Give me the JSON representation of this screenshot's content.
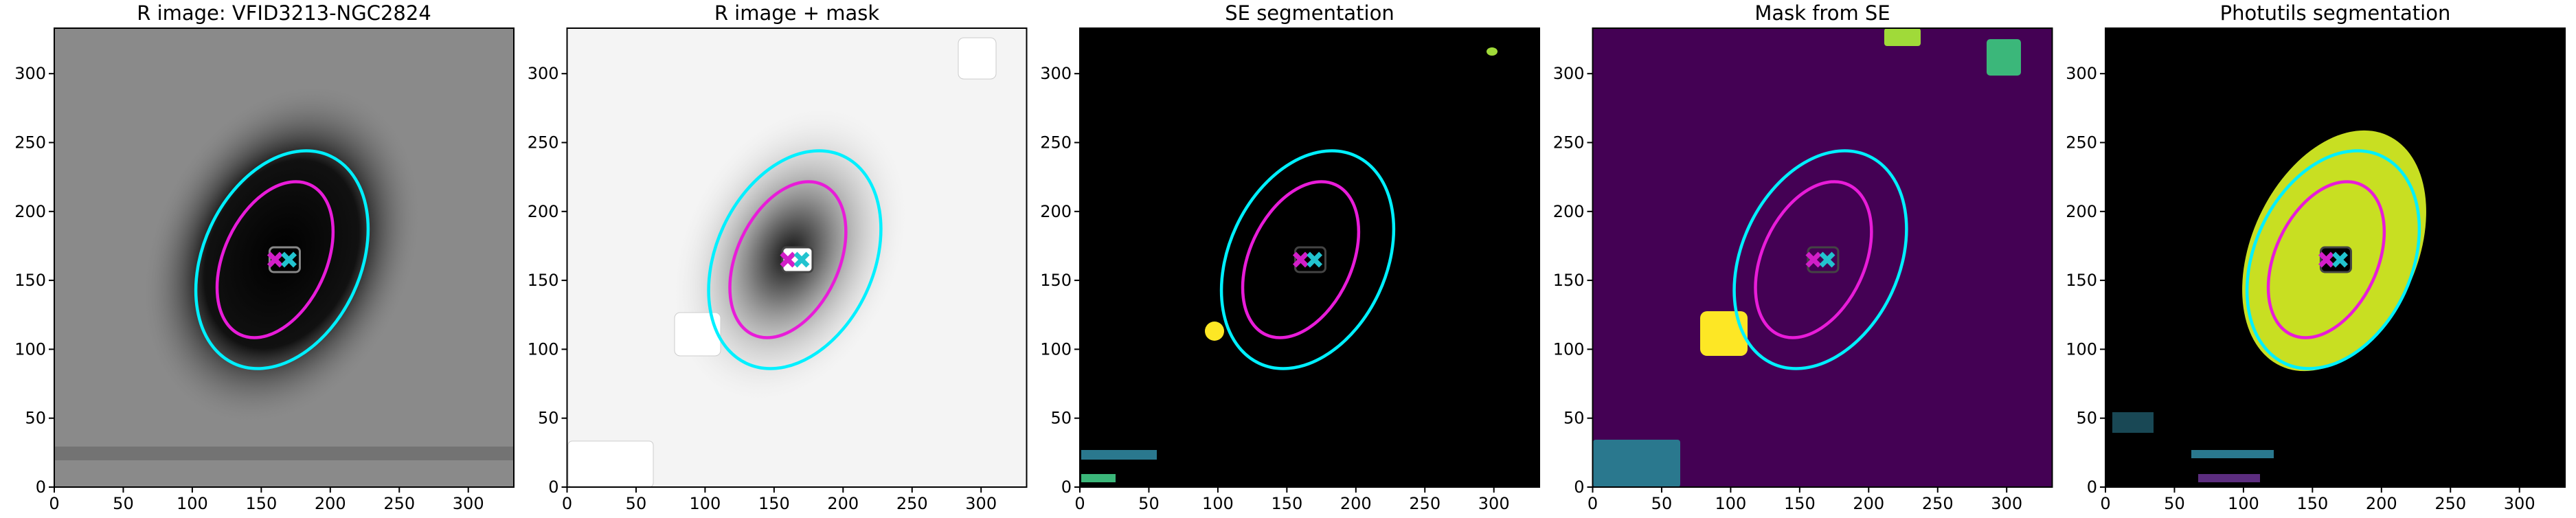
{
  "chart_data": [
    {
      "type": "image",
      "title": "R image: VFID3213-NGC2824",
      "background": "#8a8a8a",
      "core": "#000000",
      "xlim": [
        0,
        333
      ],
      "ylim": [
        0,
        333
      ],
      "xticks": [
        0,
        50,
        100,
        150,
        200,
        250,
        300
      ],
      "yticks": [
        0,
        50,
        100,
        150,
        200,
        250,
        300
      ],
      "ellipses": [
        {
          "x": 165,
          "y": 165,
          "a": 83,
          "b": 57,
          "angle": 25,
          "color": "#00f0ff"
        },
        {
          "x": 160,
          "y": 165,
          "a": 60,
          "b": 37,
          "angle": 25,
          "color": "#e81cd8"
        }
      ],
      "markers": [
        {
          "x": 160,
          "y": 165,
          "color": "#d21ec8"
        },
        {
          "x": 170,
          "y": 165,
          "color": "#22c3cf"
        }
      ]
    },
    {
      "type": "image",
      "title": "R image + mask",
      "background": "#f4f4f4",
      "core": "#202020",
      "xlim": [
        0,
        333
      ],
      "ylim": [
        0,
        333
      ],
      "xticks": [
        0,
        50,
        100,
        150,
        200,
        250,
        300
      ],
      "yticks": [
        0,
        50,
        100,
        150,
        200,
        250,
        300
      ],
      "ellipses": [
        {
          "x": 165,
          "y": 165,
          "a": 83,
          "b": 57,
          "angle": 25,
          "color": "#00f0ff"
        },
        {
          "x": 160,
          "y": 165,
          "a": 60,
          "b": 37,
          "angle": 25,
          "color": "#e81cd8"
        }
      ],
      "markers": [
        {
          "x": 160,
          "y": 165,
          "color": "#d21ec8"
        },
        {
          "x": 170,
          "y": 165,
          "color": "#22c3cf"
        }
      ]
    },
    {
      "type": "image",
      "title": "SE segmentation",
      "background": "#000000",
      "core": "#000000",
      "xlim": [
        0,
        333
      ],
      "ylim": [
        0,
        333
      ],
      "xticks": [
        0,
        50,
        100,
        150,
        200,
        250,
        300
      ],
      "yticks": [
        0,
        50,
        100,
        150,
        200,
        250,
        300
      ],
      "ellipses": [
        {
          "x": 165,
          "y": 165,
          "a": 83,
          "b": 57,
          "angle": 25,
          "color": "#00f0ff"
        },
        {
          "x": 160,
          "y": 165,
          "a": 60,
          "b": 37,
          "angle": 25,
          "color": "#e81cd8"
        }
      ],
      "markers": [
        {
          "x": 160,
          "y": 165,
          "color": "#d21ec8"
        },
        {
          "x": 170,
          "y": 165,
          "color": "#22c3cf"
        }
      ]
    },
    {
      "type": "image",
      "title": "Mask from SE",
      "background": "#440154",
      "core": "#440154",
      "xlim": [
        0,
        333
      ],
      "ylim": [
        0,
        333
      ],
      "xticks": [
        0,
        50,
        100,
        150,
        200,
        250,
        300
      ],
      "yticks": [
        0,
        50,
        100,
        150,
        200,
        250,
        300
      ],
      "ellipses": [
        {
          "x": 165,
          "y": 165,
          "a": 83,
          "b": 57,
          "angle": 25,
          "color": "#00f0ff"
        },
        {
          "x": 160,
          "y": 165,
          "a": 60,
          "b": 37,
          "angle": 25,
          "color": "#e81cd8"
        }
      ],
      "markers": [
        {
          "x": 160,
          "y": 165,
          "color": "#d21ec8"
        },
        {
          "x": 170,
          "y": 165,
          "color": "#22c3cf"
        }
      ]
    },
    {
      "type": "image",
      "title": "Photutils segmentation",
      "background": "#000000",
      "core": "#000000",
      "xlim": [
        0,
        333
      ],
      "ylim": [
        0,
        333
      ],
      "xticks": [
        0,
        50,
        100,
        150,
        200,
        250,
        300
      ],
      "yticks": [
        0,
        50,
        100,
        150,
        200,
        250,
        300
      ],
      "ellipses": [
        {
          "x": 165,
          "y": 165,
          "a": 83,
          "b": 57,
          "angle": 25,
          "color": "#00f0ff"
        },
        {
          "x": 160,
          "y": 165,
          "a": 60,
          "b": 37,
          "angle": 25,
          "color": "#e81cd8"
        }
      ],
      "markers": [
        {
          "x": 160,
          "y": 165,
          "color": "#d21ec8"
        },
        {
          "x": 170,
          "y": 165,
          "color": "#22c3cf"
        }
      ]
    }
  ]
}
